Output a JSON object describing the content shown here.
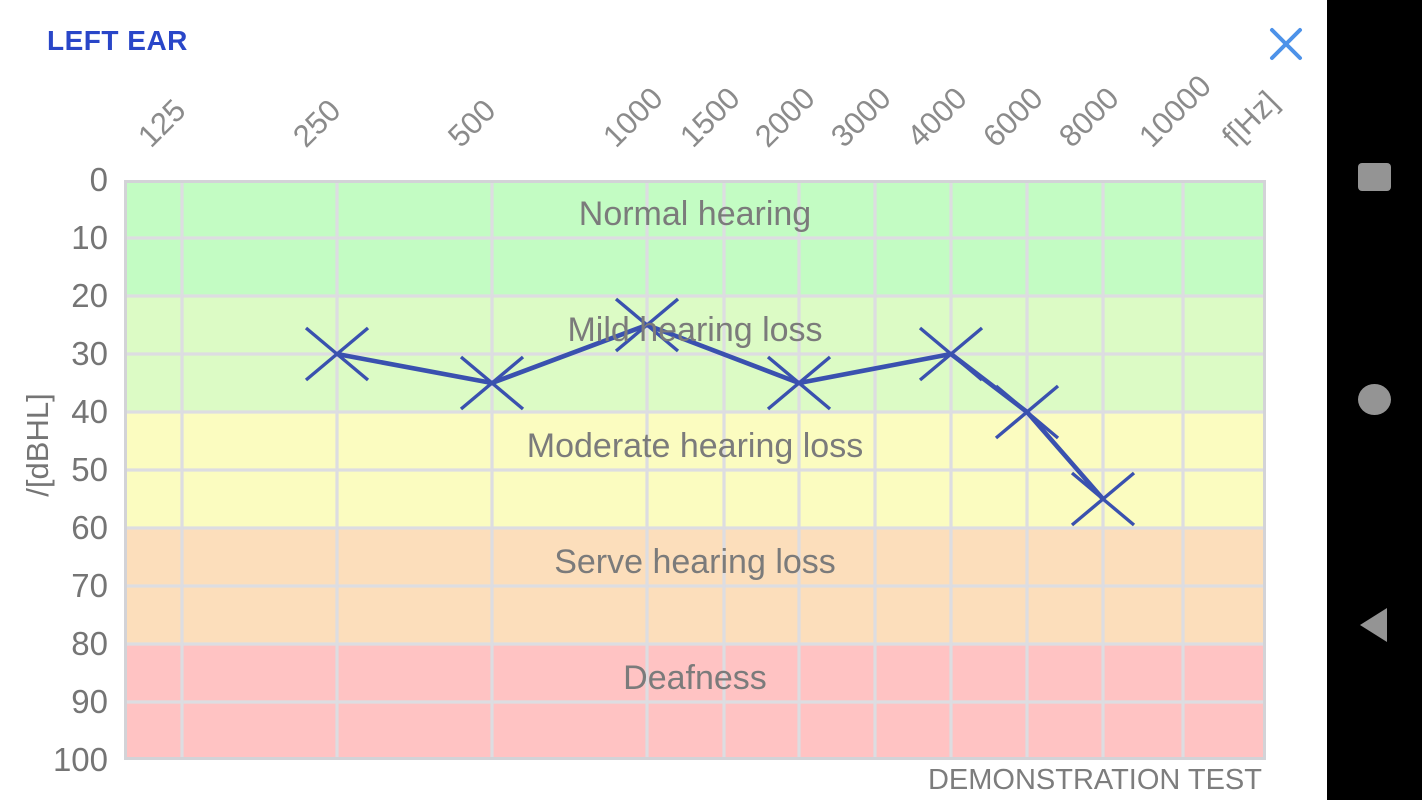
{
  "header": {
    "title": "LEFT EAR",
    "close_icon": "close-x",
    "title_color": "#2946C8",
    "close_color": "#4D92E9"
  },
  "android_nav": {
    "background": "#000000",
    "icon_color": "#949494",
    "buttons": [
      "recents",
      "home",
      "back"
    ]
  },
  "chart_data": {
    "type": "line",
    "x_axis_label": "f[Hz]",
    "y_axis_label": "/[dBHL]",
    "x_tick_labels": [
      "125",
      "250",
      "500",
      "1000",
      "1500",
      "2000",
      "3000",
      "4000",
      "6000",
      "8000",
      "10000"
    ],
    "y_tick_labels": [
      0,
      10,
      20,
      30,
      40,
      50,
      60,
      70,
      80,
      90,
      100
    ],
    "ylim": [
      0,
      100
    ],
    "y_step": 10,
    "grid": true,
    "line_color": "#3A51AF",
    "marker": "x",
    "series": [
      {
        "name": "left-ear-threshold",
        "points": [
          {
            "f": 250,
            "db": 30
          },
          {
            "f": 500,
            "db": 35
          },
          {
            "f": 1000,
            "db": 25
          },
          {
            "f": 2000,
            "db": 35
          },
          {
            "f": 4000,
            "db": 30
          },
          {
            "f": 6000,
            "db": 40
          },
          {
            "f": 8000,
            "db": 55
          }
        ]
      }
    ],
    "zones": [
      {
        "label": "Normal hearing",
        "range": [
          0,
          20
        ],
        "color": "#C3FCC3"
      },
      {
        "label": "Mild hearing loss",
        "range": [
          20,
          40
        ],
        "color": "#DCFBC5"
      },
      {
        "label": "Moderate hearing loss",
        "range": [
          40,
          60
        ],
        "color": "#FBFCC0"
      },
      {
        "label": "Serve hearing loss",
        "range": [
          60,
          80
        ],
        "color": "#FCDEBB"
      },
      {
        "label": "Deafness",
        "range": [
          80,
          100
        ],
        "color": "#FFC3C3"
      }
    ],
    "annotation": "DEMONSTRATION TEST"
  }
}
